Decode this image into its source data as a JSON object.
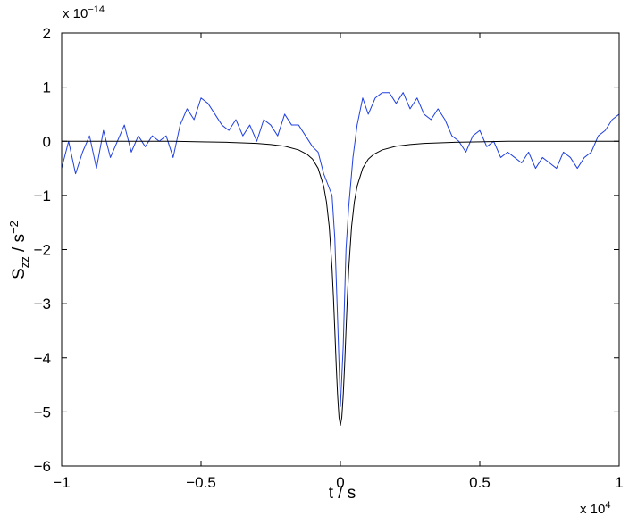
{
  "chart_data": {
    "type": "line",
    "title": "",
    "xlabel": "t / s",
    "ylabel": {
      "base": "S",
      "sub": "zz",
      "unit": " / s",
      "sup": "−2"
    },
    "x_multiplier": {
      "base": "x 10",
      "exp": "4"
    },
    "y_multiplier": {
      "base": "x 10",
      "exp": "−14"
    },
    "xlim": [
      -1,
      1
    ],
    "ylim": [
      -6,
      2
    ],
    "x_ticks": [
      -1,
      -0.5,
      0,
      0.5,
      1
    ],
    "x_tick_labels": [
      "−1",
      "−0.5",
      "0",
      "0.5",
      "1"
    ],
    "y_ticks": [
      -6,
      -5,
      -4,
      -3,
      -2,
      -1,
      0,
      1,
      2
    ],
    "y_tick_labels": [
      "−6",
      "−5",
      "−4",
      "−3",
      "−2",
      "−1",
      "0",
      "1",
      "2"
    ],
    "grid": false,
    "legend": "none",
    "series": [
      {
        "color": "#2040e0",
        "x": [
          -1.0,
          -0.975,
          -0.95,
          -0.925,
          -0.9,
          -0.875,
          -0.85,
          -0.825,
          -0.8,
          -0.775,
          -0.75,
          -0.725,
          -0.7,
          -0.675,
          -0.65,
          -0.625,
          -0.6,
          -0.575,
          -0.55,
          -0.525,
          -0.5,
          -0.475,
          -0.45,
          -0.425,
          -0.4,
          -0.375,
          -0.35,
          -0.325,
          -0.3,
          -0.275,
          -0.25,
          -0.225,
          -0.2,
          -0.175,
          -0.15,
          -0.125,
          -0.1,
          -0.08,
          -0.06,
          -0.045,
          -0.03,
          -0.02,
          -0.01,
          0.0,
          0.01,
          0.02,
          0.03,
          0.045,
          0.06,
          0.08,
          0.1,
          0.125,
          0.15,
          0.175,
          0.2,
          0.225,
          0.25,
          0.275,
          0.3,
          0.325,
          0.35,
          0.375,
          0.4,
          0.425,
          0.45,
          0.475,
          0.5,
          0.525,
          0.55,
          0.575,
          0.6,
          0.625,
          0.65,
          0.675,
          0.7,
          0.725,
          0.75,
          0.775,
          0.8,
          0.825,
          0.85,
          0.875,
          0.9,
          0.925,
          0.95,
          0.975,
          1.0
        ],
        "y": [
          -0.5,
          0.0,
          -0.6,
          -0.2,
          0.1,
          -0.5,
          0.2,
          -0.3,
          0.0,
          0.3,
          -0.2,
          0.1,
          -0.1,
          0.1,
          0.0,
          0.1,
          -0.3,
          0.3,
          0.6,
          0.4,
          0.8,
          0.7,
          0.5,
          0.3,
          0.2,
          0.4,
          0.1,
          0.3,
          0.0,
          0.4,
          0.3,
          0.1,
          0.5,
          0.3,
          0.3,
          0.1,
          -0.1,
          -0.2,
          -0.6,
          -0.8,
          -1.0,
          -1.8,
          -3.3,
          -4.9,
          -3.8,
          -2.0,
          -1.2,
          -0.3,
          0.3,
          0.8,
          0.5,
          0.8,
          0.9,
          0.9,
          0.7,
          0.9,
          0.6,
          0.8,
          0.5,
          0.4,
          0.6,
          0.4,
          0.1,
          0.0,
          -0.2,
          0.1,
          0.2,
          -0.1,
          0.0,
          -0.3,
          -0.2,
          -0.3,
          -0.4,
          -0.2,
          -0.5,
          -0.3,
          -0.4,
          -0.5,
          -0.2,
          -0.3,
          -0.5,
          -0.3,
          -0.2,
          0.1,
          0.2,
          0.4,
          0.5
        ]
      },
      {
        "color": "#000000",
        "x": [
          -1.0,
          -0.9,
          -0.8,
          -0.7,
          -0.6,
          -0.5,
          -0.4,
          -0.3,
          -0.25,
          -0.2,
          -0.15,
          -0.12,
          -0.1,
          -0.08,
          -0.06,
          -0.05,
          -0.04,
          -0.03,
          -0.025,
          -0.02,
          -0.015,
          -0.01,
          -0.005,
          0.0,
          0.005,
          0.01,
          0.015,
          0.02,
          0.025,
          0.03,
          0.04,
          0.05,
          0.06,
          0.08,
          0.1,
          0.12,
          0.15,
          0.2,
          0.25,
          0.3,
          0.4,
          0.5,
          0.6,
          0.7,
          0.8,
          0.9,
          1.0
        ],
        "y": [
          0.0,
          0.0,
          0.0,
          0.0,
          0.0,
          -0.01,
          -0.02,
          -0.04,
          -0.06,
          -0.09,
          -0.16,
          -0.24,
          -0.33,
          -0.5,
          -0.83,
          -1.12,
          -1.58,
          -2.35,
          -2.88,
          -3.5,
          -4.15,
          -4.7,
          -5.1,
          -5.25,
          -5.1,
          -4.7,
          -4.15,
          -3.5,
          -2.88,
          -2.35,
          -1.58,
          -1.12,
          -0.83,
          -0.5,
          -0.33,
          -0.24,
          -0.16,
          -0.09,
          -0.06,
          -0.04,
          -0.02,
          -0.01,
          0.0,
          0.0,
          0.0,
          0.0,
          0.0
        ]
      }
    ]
  }
}
